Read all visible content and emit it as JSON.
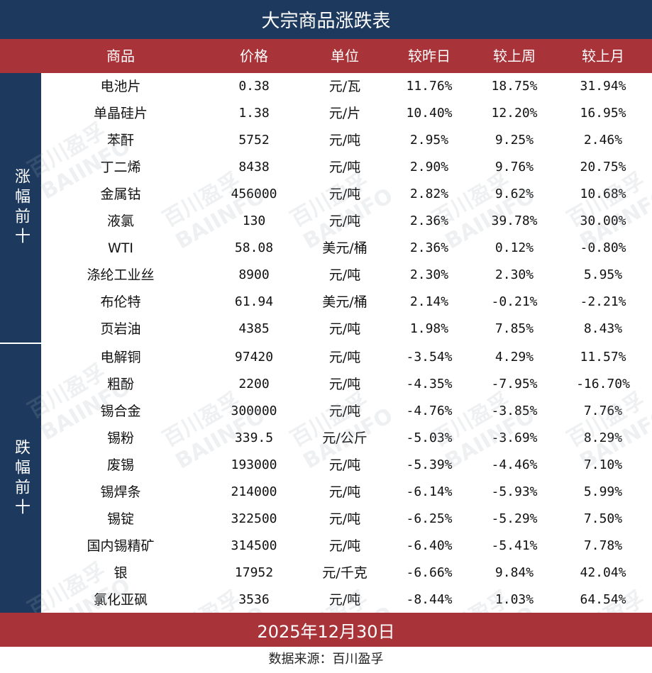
{
  "title": "大宗商品涨跌表",
  "headers": [
    "商品",
    "价格",
    "单位",
    "较昨日",
    "较上周",
    "较上月"
  ],
  "side_labels": {
    "top": "涨幅前十",
    "bottom": "跌幅前十"
  },
  "footer": {
    "date": "2025年12月30日",
    "source": "数据来源：百川盈孚"
  },
  "watermark": {
    "cn": "百川盈孚",
    "en": "BAIINFO"
  },
  "colors": {
    "navy": "#1d3a5e",
    "red_bar": "#a8343a",
    "up": "#e01010",
    "down": "#13a13e"
  },
  "chart_data": {
    "type": "table",
    "title": "大宗商品涨跌表",
    "columns": [
      "商品",
      "价格",
      "单位",
      "较昨日",
      "较上周",
      "较上月"
    ],
    "groups": [
      {
        "label": "涨幅前十",
        "rows": [
          {
            "name": "电池片",
            "price": "0.38",
            "unit": "元/瓦",
            "day": "11.76%",
            "week": "18.75%",
            "month": "31.94%"
          },
          {
            "name": "单晶硅片",
            "price": "1.38",
            "unit": "元/片",
            "day": "10.40%",
            "week": "12.20%",
            "month": "16.95%"
          },
          {
            "name": "苯酐",
            "price": "5752",
            "unit": "元/吨",
            "day": "2.95%",
            "week": "9.25%",
            "month": "2.46%"
          },
          {
            "name": "丁二烯",
            "price": "8438",
            "unit": "元/吨",
            "day": "2.90%",
            "week": "9.76%",
            "month": "20.75%"
          },
          {
            "name": "金属钴",
            "price": "456000",
            "unit": "元/吨",
            "day": "2.82%",
            "week": "9.62%",
            "month": "10.68%"
          },
          {
            "name": "液氯",
            "price": "130",
            "unit": "元/吨",
            "day": "2.36%",
            "week": "39.78%",
            "month": "30.00%"
          },
          {
            "name": "WTI",
            "price": "58.08",
            "unit": "美元/桶",
            "day": "2.36%",
            "week": "0.12%",
            "month": "-0.80%"
          },
          {
            "name": "涤纶工业丝",
            "price": "8900",
            "unit": "元/吨",
            "day": "2.30%",
            "week": "2.30%",
            "month": "5.95%"
          },
          {
            "name": "布伦特",
            "price": "61.94",
            "unit": "美元/桶",
            "day": "2.14%",
            "week": "-0.21%",
            "month": "-2.21%"
          },
          {
            "name": "页岩油",
            "price": "4385",
            "unit": "元/吨",
            "day": "1.98%",
            "week": "7.85%",
            "month": "8.43%"
          }
        ]
      },
      {
        "label": "跌幅前十",
        "rows": [
          {
            "name": "电解铜",
            "price": "97420",
            "unit": "元/吨",
            "day": "-3.54%",
            "week": "4.29%",
            "month": "11.57%"
          },
          {
            "name": "粗酚",
            "price": "2200",
            "unit": "元/吨",
            "day": "-4.35%",
            "week": "-7.95%",
            "month": "-16.70%"
          },
          {
            "name": "锡合金",
            "price": "300000",
            "unit": "元/吨",
            "day": "-4.76%",
            "week": "-3.85%",
            "month": "7.76%"
          },
          {
            "name": "锡粉",
            "price": "339.5",
            "unit": "元/公斤",
            "day": "-5.03%",
            "week": "-3.69%",
            "month": "8.29%"
          },
          {
            "name": "废锡",
            "price": "193000",
            "unit": "元/吨",
            "day": "-5.39%",
            "week": "-4.46%",
            "month": "7.10%"
          },
          {
            "name": "锡焊条",
            "price": "214000",
            "unit": "元/吨",
            "day": "-6.14%",
            "week": "-5.93%",
            "month": "5.99%"
          },
          {
            "name": "锡锭",
            "price": "322500",
            "unit": "元/吨",
            "day": "-6.25%",
            "week": "-5.29%",
            "month": "7.50%"
          },
          {
            "name": "国内锡精矿",
            "price": "314500",
            "unit": "元/吨",
            "day": "-6.40%",
            "week": "-5.41%",
            "month": "7.78%"
          },
          {
            "name": "银",
            "price": "17952",
            "unit": "元/千克",
            "day": "-6.66%",
            "week": "9.84%",
            "month": "42.04%"
          },
          {
            "name": "氯化亚砜",
            "price": "3536",
            "unit": "元/吨",
            "day": "-8.44%",
            "week": "1.03%",
            "month": "64.54%"
          }
        ]
      }
    ]
  }
}
